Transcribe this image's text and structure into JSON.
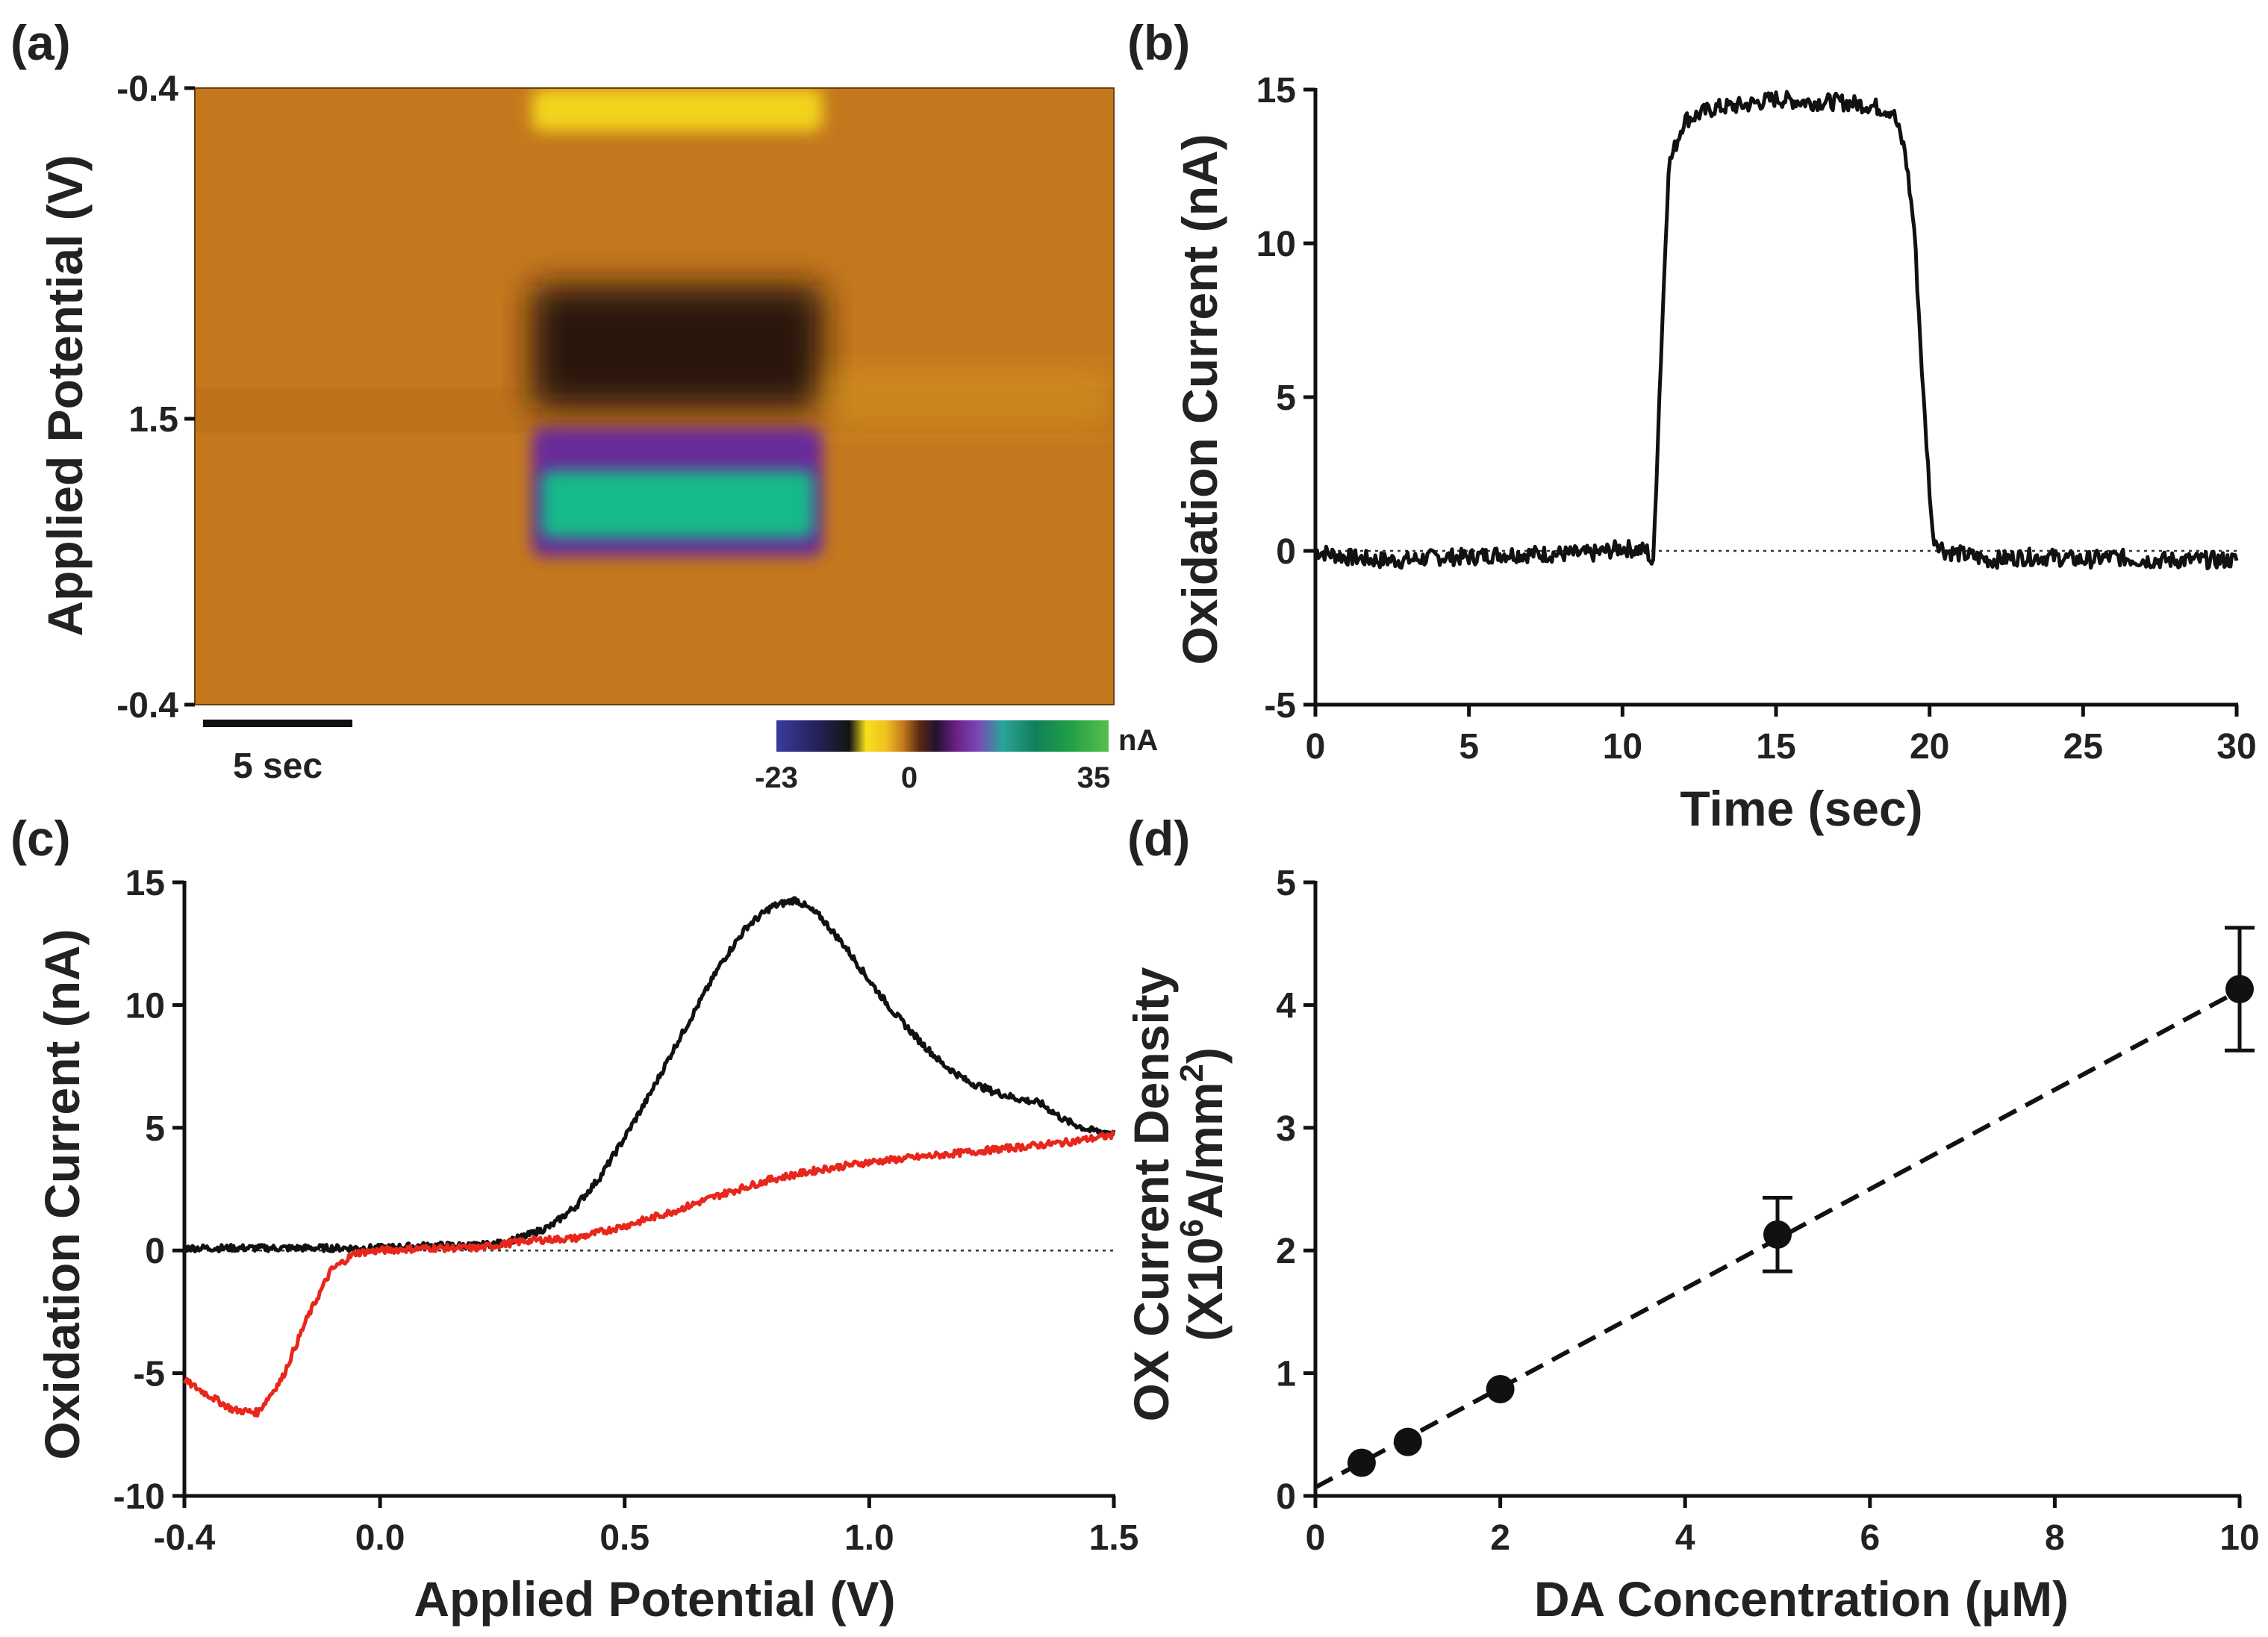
{
  "chart_data": [
    {
      "id": "a",
      "panel_label": "(a)",
      "type": "heatmap",
      "ylabel": "Applied Potential (V)",
      "y_ticks": [
        "-0.4",
        "1.5",
        "-0.4"
      ],
      "scale_bar_label": "5 sec",
      "colorbar": {
        "unit": "nA",
        "min_label": "-23",
        "zero_label": "0",
        "max_label": "35",
        "range": [
          -23,
          35
        ]
      },
      "background_value": 0,
      "x_range_sec": [
        0,
        30
      ],
      "y_range_norm": [
        0,
        1
      ],
      "features": [
        {
          "name": "reduction-band-top",
          "t": [
            11,
            20.5
          ],
          "y": [
            0,
            0.07
          ],
          "value": -5
        },
        {
          "name": "dark-reduction-band",
          "t": [
            11,
            20.5
          ],
          "y": [
            0.32,
            0.52
          ],
          "value": -18
        },
        {
          "name": "purple-halo",
          "t": [
            11,
            20.5
          ],
          "y": [
            0.55,
            0.76
          ],
          "value": 12
        },
        {
          "name": "dopamine-oxidation-peak",
          "t": [
            11.3,
            20.2
          ],
          "y": [
            0.62,
            0.73
          ],
          "value": 32
        },
        {
          "name": "afterglow",
          "t": [
            20.5,
            30
          ],
          "y": [
            0.46,
            0.55
          ],
          "value": -2
        }
      ]
    },
    {
      "id": "b",
      "panel_label": "(b)",
      "type": "line",
      "xlabel": "Time (sec)",
      "ylabel": "Oxidation Current (nA)",
      "xlim": [
        0,
        30
      ],
      "ylim": [
        -5,
        15
      ],
      "xticks": [
        0,
        5,
        10,
        15,
        20,
        25,
        30
      ],
      "yticks": [
        -5,
        0,
        5,
        10,
        15
      ],
      "series": [
        {
          "name": "Oxidation current",
          "color": "#111111",
          "x": [
            0,
            1,
            2,
            3,
            4,
            5,
            6,
            7,
            8,
            9,
            10,
            10.8,
            11.0,
            11.2,
            11.5,
            12,
            13,
            14,
            15,
            16,
            17,
            18,
            18.8,
            19.2,
            19.5,
            19.8,
            20.1,
            20.5,
            21,
            22,
            23,
            24,
            25,
            26,
            27,
            28,
            29,
            30
          ],
          "y": [
            0,
            -0.2,
            -0.3,
            -0.3,
            -0.2,
            -0.2,
            -0.1,
            -0.1,
            -0.1,
            -0.1,
            0.1,
            0.0,
            -0.5,
            5.0,
            12.5,
            14.0,
            14.4,
            14.5,
            14.7,
            14.6,
            14.6,
            14.5,
            14.3,
            13.0,
            10.5,
            5.0,
            0.5,
            0.0,
            -0.1,
            -0.3,
            -0.2,
            -0.2,
            -0.3,
            -0.2,
            -0.3,
            -0.3,
            -0.3,
            -0.3
          ]
        }
      ]
    },
    {
      "id": "c",
      "panel_label": "(c)",
      "type": "line",
      "xlabel": "Applied Potential (V)",
      "ylabel": "Oxidation Current (nA)",
      "xlim": [
        -0.4,
        1.5
      ],
      "ylim": [
        -10,
        15
      ],
      "xticks": [
        "-0.4",
        "0.0",
        "0.5",
        "1.0",
        "1.5"
      ],
      "yticks": [
        -10,
        -5,
        0,
        5,
        10,
        15
      ],
      "series": [
        {
          "name": "Oxidation scan",
          "color": "#111111",
          "x": [
            -0.4,
            -0.3,
            -0.2,
            -0.1,
            0.0,
            0.1,
            0.2,
            0.25,
            0.3,
            0.35,
            0.4,
            0.45,
            0.5,
            0.55,
            0.6,
            0.65,
            0.7,
            0.75,
            0.8,
            0.85,
            0.9,
            0.95,
            1.0,
            1.05,
            1.1,
            1.15,
            1.2,
            1.25,
            1.3,
            1.35,
            1.4,
            1.45,
            1.5
          ],
          "y": [
            0.1,
            0.1,
            0.1,
            0.1,
            0.1,
            0.2,
            0.2,
            0.3,
            0.6,
            1.0,
            1.8,
            3.0,
            4.6,
            6.3,
            8.2,
            10.0,
            11.8,
            13.2,
            14.0,
            14.3,
            13.6,
            12.4,
            11.0,
            9.7,
            8.6,
            7.6,
            6.9,
            6.5,
            6.2,
            6.0,
            5.3,
            4.9,
            4.8
          ]
        },
        {
          "name": "Reduction scan",
          "color": "#e8271c",
          "x": [
            -0.4,
            -0.35,
            -0.3,
            -0.25,
            -0.2,
            -0.15,
            -0.1,
            -0.05,
            0.0,
            0.1,
            0.2,
            0.3,
            0.4,
            0.5,
            0.6,
            0.7,
            0.8,
            0.9,
            1.0,
            1.1,
            1.2,
            1.3,
            1.4,
            1.5
          ],
          "y": [
            -5.3,
            -5.9,
            -6.5,
            -6.6,
            -5.2,
            -2.8,
            -0.8,
            -0.1,
            0.0,
            0.1,
            0.1,
            0.4,
            0.5,
            1.0,
            1.6,
            2.3,
            2.9,
            3.3,
            3.6,
            3.8,
            4.0,
            4.2,
            4.4,
            4.7
          ]
        }
      ]
    },
    {
      "id": "d",
      "panel_label": "(d)",
      "type": "scatter",
      "xlabel": "DA Concentration (μM)",
      "ylabel_line1": "OX Current Density",
      "ylabel_line2_prefix": "(X10",
      "ylabel_line2_sup1": "6",
      "ylabel_line2_mid": "A/mm",
      "ylabel_line2_sup2": "2",
      "ylabel_line2_suffix": ")",
      "xlim": [
        0,
        10
      ],
      "ylim": [
        0,
        5
      ],
      "xticks": [
        0,
        2,
        4,
        6,
        8,
        10
      ],
      "yticks": [
        0,
        1,
        2,
        3,
        4,
        5
      ],
      "points": [
        {
          "x": 0.5,
          "y": 0.27,
          "err": 0
        },
        {
          "x": 1,
          "y": 0.44,
          "err": 0
        },
        {
          "x": 2,
          "y": 0.87,
          "err": 0
        },
        {
          "x": 5,
          "y": 2.13,
          "err": 0.3
        },
        {
          "x": 10,
          "y": 4.13,
          "err": 0.5
        }
      ],
      "fit": {
        "slope": 0.405,
        "intercept": 0.07
      }
    }
  ]
}
